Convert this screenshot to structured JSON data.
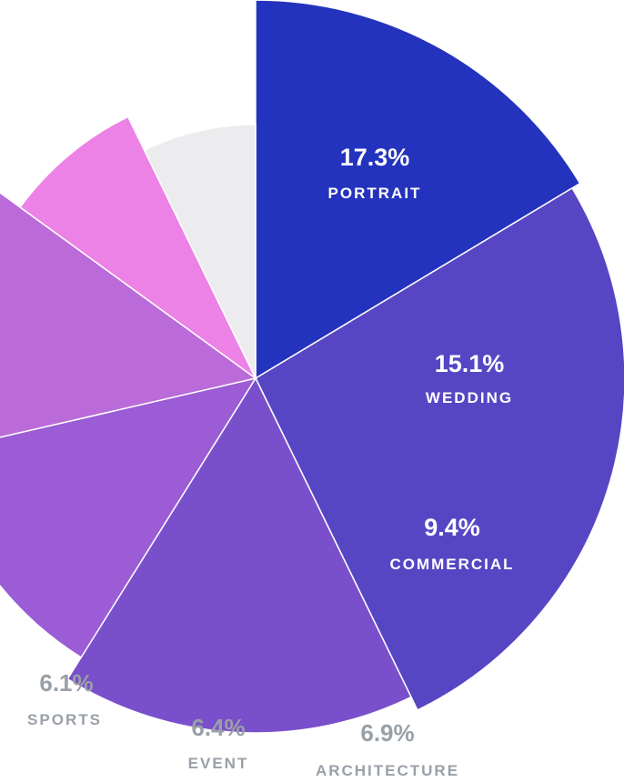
{
  "chart_data": {
    "type": "pie",
    "variant": "polar-area",
    "slices": [
      {
        "category": "PORTRAIT",
        "value_label": "17.3%",
        "value": 17.3,
        "color": "#2433bd",
        "label_color": "#ffffff"
      },
      {
        "category": "WEDDING",
        "value_label": "15.1%",
        "value": 15.1,
        "color": "#5746c4",
        "label_color": "#ffffff"
      },
      {
        "category": "COMMERCIAL",
        "value_label": "9.4%",
        "value": 9.4,
        "color": "#7a4fcb",
        "label_color": "#ffffff"
      },
      {
        "category": "ARCHITECTURE",
        "value_label": "6.9%",
        "value": 6.9,
        "color": "#9b5cd6",
        "label_color": "#9aa0a8"
      },
      {
        "category": "EVENT",
        "value_label": "6.4%",
        "value": 6.4,
        "color": "#bb6ad9",
        "label_color": "#9aa0a8"
      },
      {
        "category": "SPORTS",
        "value_label": "6.1%",
        "value": 6.1,
        "color": "#ec82e6",
        "label_color": "#9aa0a8"
      },
      {
        "category": "",
        "value_label": "",
        "value": null,
        "color": "#ececef",
        "label_color": ""
      }
    ]
  }
}
